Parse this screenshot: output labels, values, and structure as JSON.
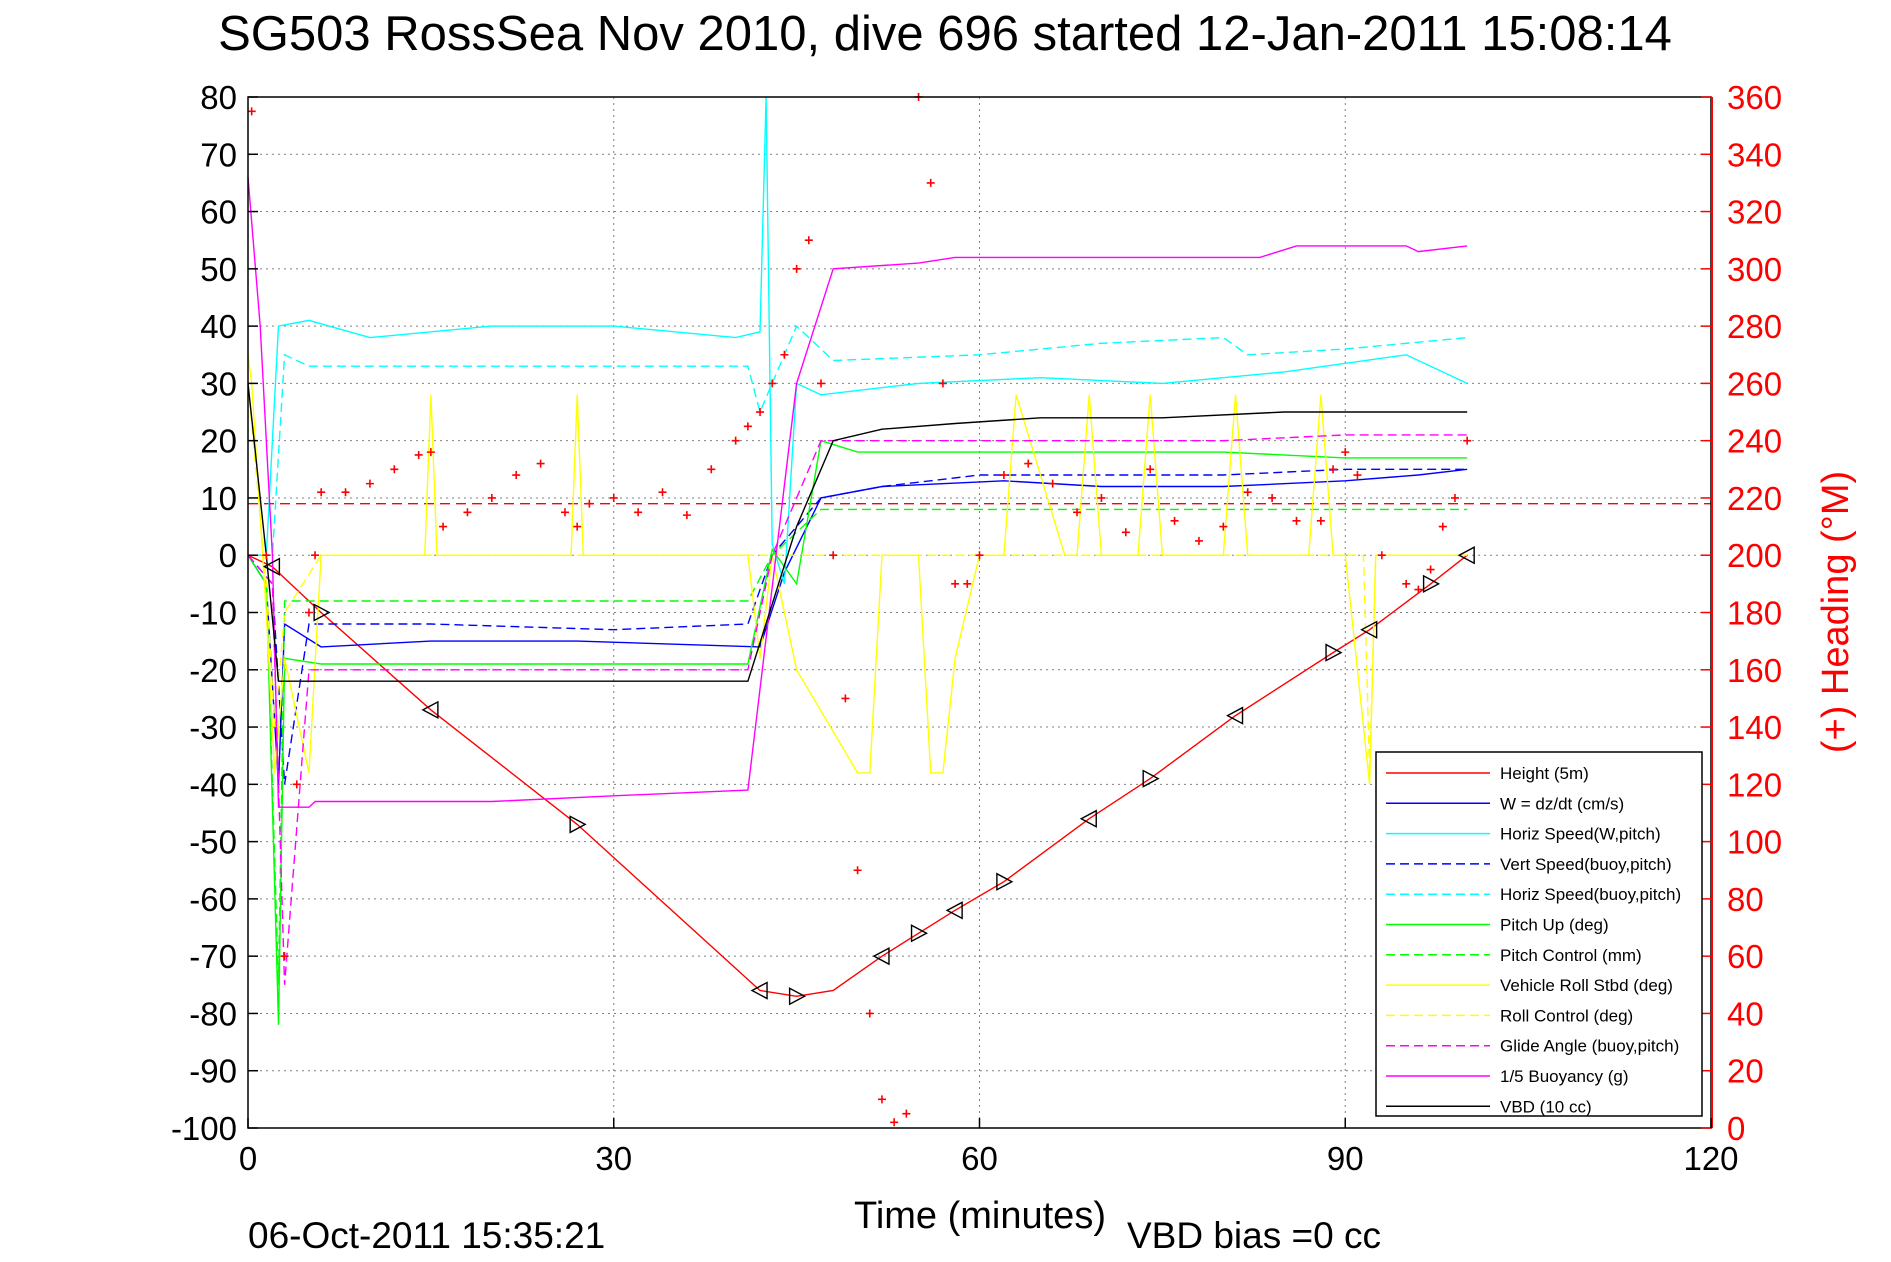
{
  "title": "SG503 RossSea Nov 2010, dive 696 started 12-Jan-2011 15:08:14",
  "footer_left": "06-Oct-2011 15:35:21",
  "footer_right": "VBD bias =0 cc",
  "colors": {
    "height": "#ff0000",
    "w": "#0000ff",
    "horiz": "#00ffff",
    "pitch": "#00ff00",
    "roll": "#ffff00",
    "glide": "#ff00ff",
    "buoy": "#ff00ff",
    "vbd": "#000000",
    "heading": "#ff0000",
    "grid": "#808080"
  },
  "chart_data": {
    "type": "line",
    "title": "SG503 RossSea Nov 2010, dive 696 started 12-Jan-2011 15:08:14",
    "xlabel": "Time (minutes)",
    "ylabel": "",
    "y2label": "(+) Heading (°M)",
    "xlim": [
      0,
      120
    ],
    "ylim": [
      -100,
      80
    ],
    "y2lim": [
      0,
      360
    ],
    "xticks": [
      "0",
      "30",
      "60",
      "90",
      "120"
    ],
    "yticks": [
      "80",
      "70",
      "60",
      "50",
      "40",
      "30",
      "20",
      "10",
      "0",
      "-10",
      "-20",
      "-30",
      "-40",
      "-50",
      "-60",
      "-70",
      "-80",
      "-90",
      "-100"
    ],
    "y2ticks": [
      "360",
      "340",
      "320",
      "300",
      "280",
      "260",
      "240",
      "220",
      "200",
      "180",
      "160",
      "140",
      "120",
      "100",
      "80",
      "60",
      "40",
      "20",
      "0"
    ],
    "grid": true,
    "legend_position": "lower-right",
    "series": [
      {
        "name": "Height (5m)",
        "key": "height",
        "style": "solid",
        "color": "#ff0000",
        "x": [
          0,
          2,
          6,
          15,
          27,
          42,
          45,
          48,
          52,
          58,
          62,
          69,
          74,
          81,
          89,
          92,
          97,
          100
        ],
        "y": [
          0,
          -2,
          -10,
          -27,
          -47,
          -76,
          -77,
          -76,
          -70,
          -62,
          -57,
          -46,
          -39,
          -28,
          -17,
          -13,
          -5,
          0
        ]
      },
      {
        "name": "W = dz/dt (cm/s)",
        "key": "w",
        "style": "solid",
        "color": "#0000ff",
        "x": [
          0,
          1.5,
          2.5,
          3,
          6,
          15,
          27,
          42,
          44,
          47,
          52,
          62,
          70,
          80,
          90,
          96,
          100
        ],
        "y": [
          0,
          -5,
          -40,
          -12,
          -16,
          -15,
          -15,
          -16,
          -3,
          10,
          12,
          13,
          12,
          12,
          13,
          14,
          15
        ]
      },
      {
        "name": "Horiz Speed(W,pitch)",
        "key": "horiz",
        "style": "solid",
        "color": "#00ffff",
        "x": [
          0,
          1.5,
          2.5,
          5,
          10,
          20,
          30,
          40,
          42,
          42.5,
          43,
          44,
          45,
          47,
          55,
          65,
          75,
          85,
          95,
          100
        ],
        "y": [
          0,
          0,
          40,
          41,
          38,
          40,
          40,
          38,
          39,
          80,
          2,
          -5,
          30,
          28,
          30,
          31,
          30,
          32,
          35,
          30
        ]
      },
      {
        "name": "Vert Speed(buoy,pitch)",
        "key": "vert_buoy",
        "style": "dashed",
        "color": "#0000ff",
        "x": [
          0,
          2,
          3,
          5,
          15,
          30,
          41,
          43,
          47,
          52,
          60,
          70,
          80,
          90,
          100
        ],
        "y": [
          0,
          -5,
          -40,
          -12,
          -12,
          -13,
          -12,
          0,
          10,
          12,
          14,
          14,
          14,
          15,
          15
        ]
      },
      {
        "name": "Horiz Speed(buoy,pitch)",
        "key": "horiz_buoy",
        "style": "dashed",
        "color": "#00ffff",
        "x": [
          0,
          2,
          3,
          5,
          15,
          30,
          41,
          42,
          45,
          48,
          60,
          70,
          80,
          82,
          90,
          100
        ],
        "y": [
          0,
          0,
          35,
          33,
          33,
          33,
          33,
          25,
          40,
          34,
          35,
          37,
          38,
          35,
          36,
          38
        ]
      },
      {
        "name": "Pitch Up (deg)",
        "key": "pitch",
        "style": "solid",
        "color": "#00ff00",
        "x": [
          0,
          1.5,
          2.5,
          3,
          6,
          15,
          30,
          41,
          43,
          45,
          47,
          50,
          60,
          70,
          80,
          90,
          100
        ],
        "y": [
          0,
          -5,
          -82,
          -18,
          -19,
          -19,
          -19,
          -19,
          1,
          -5,
          20,
          18,
          18,
          18,
          18,
          17,
          17
        ]
      },
      {
        "name": "Pitch Control (mm)",
        "key": "pitch_ctl",
        "style": "dashed",
        "color": "#00ff00",
        "x": [
          0,
          1.5,
          2.5,
          3,
          6,
          15,
          30,
          41,
          43,
          47,
          60,
          80,
          100
        ],
        "y": [
          0,
          -5,
          -75,
          -8,
          -8,
          -8,
          -8,
          -8,
          0,
          8,
          8,
          8,
          8
        ]
      },
      {
        "name": "Vehicle Roll Stbd (deg)",
        "key": "roll",
        "style": "solid",
        "color": "#ffff00",
        "x": [
          0,
          0.3,
          1.5,
          2.2,
          3,
          5,
          6,
          14.5,
          15,
          15.5,
          26.5,
          27,
          27.5,
          41,
          42,
          43,
          45,
          50,
          51,
          52,
          55,
          56,
          57,
          58,
          60,
          62,
          63,
          67,
          68,
          69,
          70,
          73,
          74,
          75,
          80,
          81,
          82,
          87,
          88,
          89,
          90,
          92,
          92.5,
          100
        ],
        "y": [
          35,
          30,
          -10,
          -38,
          -18,
          -38,
          0,
          0,
          28,
          0,
          0,
          28,
          0,
          0,
          -18,
          0,
          -20,
          -38,
          -38,
          0,
          0,
          -38,
          -38,
          -18,
          0,
          0,
          28,
          0,
          0,
          28,
          0,
          0,
          28,
          0,
          0,
          28,
          0,
          0,
          28,
          0,
          0,
          -40,
          0,
          0
        ]
      },
      {
        "name": "Roll Control (deg)",
        "key": "roll_ctl",
        "style": "dashed",
        "color": "#ffff00",
        "x": [
          0,
          1.5,
          2.2,
          3,
          6,
          26,
          41,
          45,
          60,
          80,
          91.5,
          92,
          92.5,
          100
        ],
        "y": [
          30,
          -5,
          -30,
          -10,
          0,
          0,
          0,
          0,
          0,
          0,
          0,
          -38,
          0,
          0
        ]
      },
      {
        "name": "Glide Angle (buoy,pitch)",
        "key": "glide",
        "style": "dashed",
        "color": "#ff00ff",
        "x": [
          0,
          2,
          3,
          5,
          15,
          30,
          41,
          43,
          47,
          52,
          60,
          70,
          80,
          90,
          100
        ],
        "y": [
          0,
          -5,
          -75,
          -20,
          -20,
          -20,
          -20,
          0,
          20,
          20,
          20,
          20,
          20,
          21,
          21
        ]
      },
      {
        "name": "1/5 Buoyancy (g)",
        "key": "buoy",
        "style": "solid",
        "color": "#ff00ff",
        "x": [
          0,
          1,
          2,
          2.5,
          5,
          5.5,
          10,
          20,
          30,
          41,
          45,
          48,
          55,
          58,
          60,
          70,
          83,
          86,
          95,
          96,
          100
        ],
        "y": [
          66,
          40,
          0,
          -44,
          -44,
          -43,
          -43,
          -43,
          -42,
          -41,
          30,
          50,
          51,
          52,
          52,
          52,
          52,
          54,
          54,
          53,
          54
        ]
      },
      {
        "name": "VBD (10 cc)",
        "key": "vbd",
        "style": "solid",
        "color": "#000000",
        "x": [
          0,
          1.5,
          2.5,
          10,
          20,
          30,
          41,
          45,
          48,
          52,
          58,
          65,
          75,
          85,
          90,
          100
        ],
        "y": [
          30,
          0,
          -22,
          -22,
          -22,
          -22,
          -22,
          5,
          20,
          22,
          23,
          24,
          24,
          25,
          25,
          25
        ]
      }
    ],
    "heading_series": {
      "name": "(+) Heading",
      "x": [
        0.3,
        1.5,
        3,
        4,
        5,
        5.5,
        6,
        8,
        10,
        12,
        14,
        15,
        16,
        18,
        20,
        22,
        24,
        26,
        27,
        28,
        30,
        32,
        34,
        36,
        38,
        40,
        41,
        42,
        43,
        44,
        45,
        46,
        47,
        48,
        49,
        50,
        51,
        52,
        53,
        54,
        55,
        56,
        57,
        58,
        59,
        60,
        62,
        64,
        66,
        68,
        70,
        72,
        74,
        76,
        78,
        80,
        82,
        84,
        86,
        88,
        89,
        90,
        91,
        93,
        95,
        96,
        97,
        98,
        99,
        100
      ],
      "y": [
        355,
        200,
        60,
        120,
        180,
        200,
        222,
        222,
        225,
        230,
        235,
        236,
        210,
        215,
        220,
        228,
        232,
        215,
        210,
        218,
        220,
        215,
        222,
        214,
        230,
        240,
        245,
        250,
        260,
        270,
        300,
        310,
        260,
        200,
        150,
        90,
        40,
        10,
        2,
        5,
        360,
        330,
        260,
        190,
        190,
        200,
        228,
        232,
        225,
        215,
        220,
        208,
        230,
        212,
        205,
        210,
        222,
        220,
        212,
        212,
        230,
        236,
        228,
        200,
        190,
        188,
        195,
        210,
        220,
        240
      ]
    },
    "heading_target": 218,
    "legend_entries": [
      "Height (5m)",
      "W = dz/dt (cm/s)",
      "Horiz Speed(W,pitch)",
      "Vert Speed(buoy,pitch)",
      "Horiz Speed(buoy,pitch)",
      "Pitch Up (deg)",
      "Pitch Control (mm)",
      "Vehicle Roll Stbd (deg)",
      "Roll Control (deg)",
      "Glide Angle (buoy,pitch)",
      "1/5 Buoyancy (g)",
      "VBD (10 cc)"
    ],
    "markers": {
      "x": [
        2,
        6,
        15,
        27,
        42,
        45,
        52,
        55,
        58,
        62,
        69,
        74,
        81,
        89,
        92,
        97,
        100
      ],
      "y": [
        -2,
        -10,
        -27,
        -47,
        -76,
        -77,
        -70,
        -66,
        -62,
        -57,
        -46,
        -39,
        -28,
        -17,
        -13,
        -5,
        0
      ]
    }
  }
}
